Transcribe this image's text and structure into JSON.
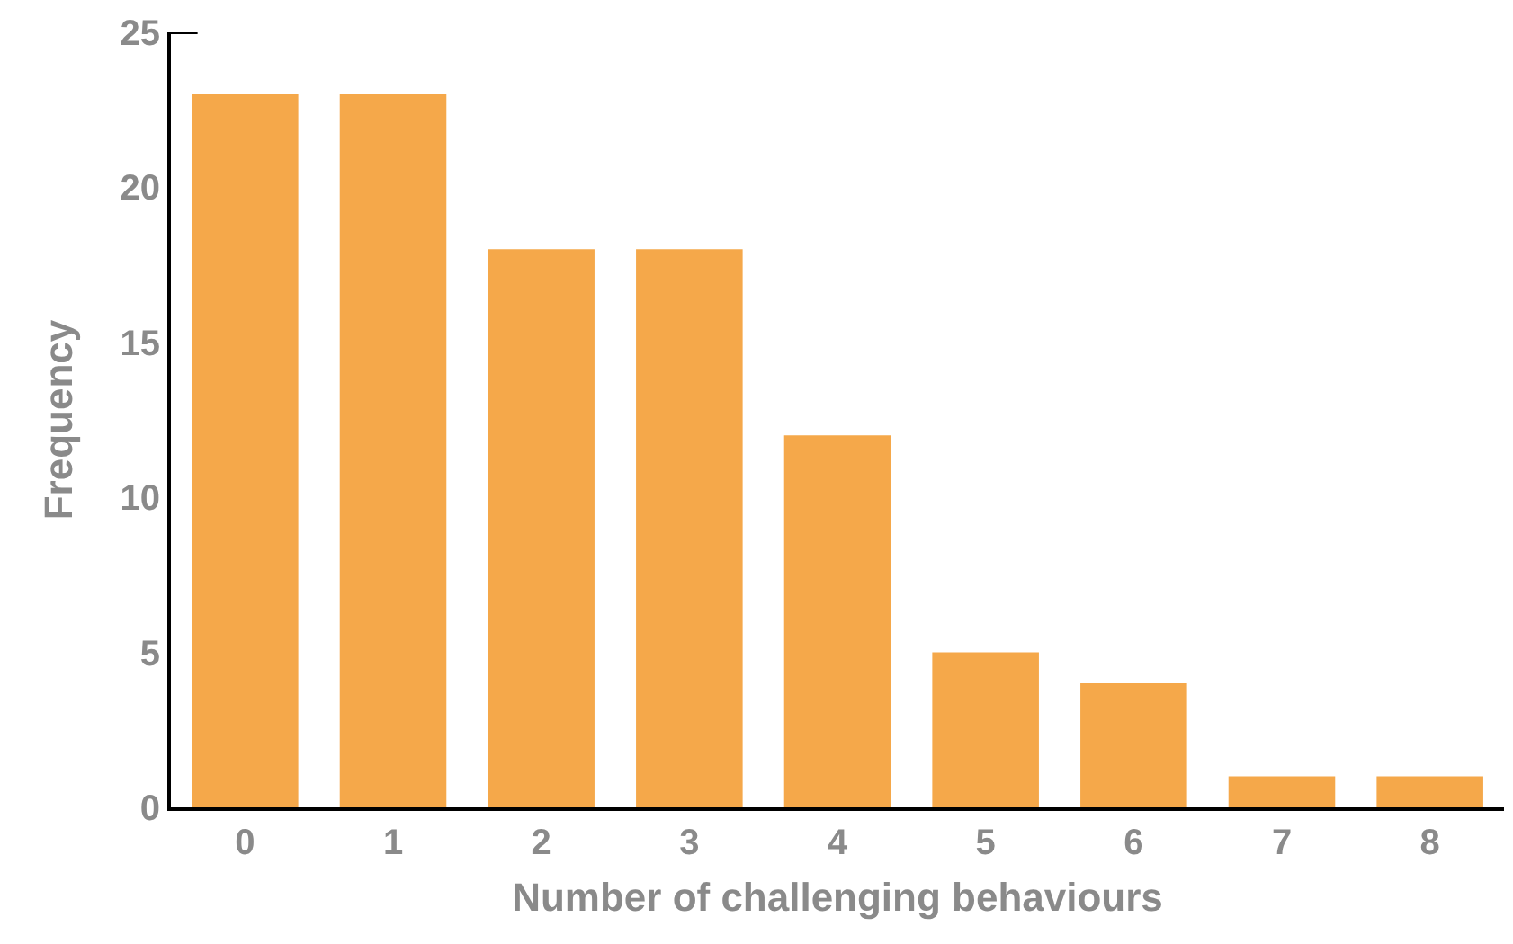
{
  "chart_data": {
    "type": "bar",
    "xlabel": "Number of challenging behaviours",
    "ylabel": "Frequency",
    "categories": [
      "0",
      "1",
      "2",
      "3",
      "4",
      "5",
      "6",
      "7",
      "8"
    ],
    "values": [
      23,
      23,
      18,
      18,
      12,
      5,
      4,
      1,
      1
    ],
    "color": "#f5a84a",
    "ylim": [
      0,
      25
    ],
    "yticks": [
      0,
      5,
      10,
      15,
      20,
      25
    ],
    "grid": false,
    "legend": false
  }
}
